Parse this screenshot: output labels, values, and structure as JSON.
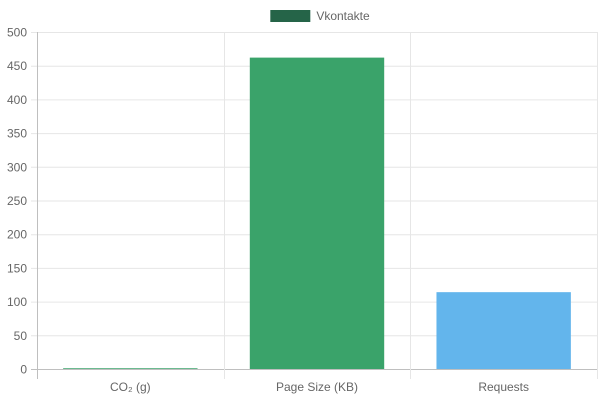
{
  "chart_data": {
    "type": "bar",
    "categories": [
      "CO₂ (g)",
      "Page Size (KB)",
      "Requests"
    ],
    "series": [
      {
        "name": "Vkontakte",
        "values": [
          1.1,
          462,
          114
        ],
        "bar_colors": [
          "#3aa36a",
          "#3aa36a",
          "#63b5ec"
        ]
      }
    ],
    "legend": {
      "position": "top",
      "swatch_color": "#256448"
    },
    "ylim": [
      0,
      500
    ],
    "yticks": [
      0,
      50,
      100,
      150,
      200,
      250,
      300,
      350,
      400,
      450,
      500
    ],
    "grid": true,
    "xlabel": "",
    "ylabel": "",
    "title": ""
  }
}
